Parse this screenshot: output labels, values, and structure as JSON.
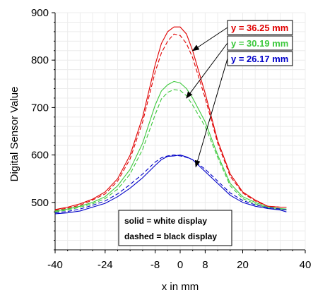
{
  "chart_data": {
    "type": "line",
    "title": "",
    "xlabel": "x in mm",
    "ylabel": "Digital Sensor Value",
    "xlim": [
      -40,
      40
    ],
    "ylim": [
      400,
      900
    ],
    "x_ticks": [
      -40,
      -24,
      -8,
      0,
      8,
      20,
      40
    ],
    "y_ticks": [
      500,
      600,
      700,
      800,
      900
    ],
    "grid": true,
    "series": [
      {
        "name": "y = 36.25 mm",
        "display": "white",
        "style": "solid",
        "color": "#e00000",
        "x": [
          -40,
          -36,
          -32,
          -28,
          -24,
          -20,
          -16,
          -12,
          -8,
          -6,
          -4,
          -2,
          0,
          2,
          4,
          8,
          12,
          16,
          20,
          24,
          28,
          32,
          34
        ],
        "y": [
          485,
          490,
          497,
          507,
          522,
          550,
          600,
          680,
          790,
          835,
          860,
          870,
          870,
          855,
          820,
          730,
          630,
          560,
          522,
          505,
          492,
          490,
          490
        ]
      },
      {
        "name": "y = 36.25 mm",
        "display": "black",
        "style": "dashed",
        "color": "#e00000",
        "x": [
          -40,
          -36,
          -32,
          -28,
          -24,
          -20,
          -16,
          -12,
          -8,
          -6,
          -4,
          -2,
          0,
          2,
          4,
          8,
          12,
          16,
          20,
          24,
          28,
          32,
          34
        ],
        "y": [
          483,
          488,
          494,
          505,
          518,
          545,
          592,
          670,
          775,
          815,
          840,
          855,
          852,
          835,
          805,
          720,
          625,
          555,
          520,
          503,
          492,
          490,
          490
        ]
      },
      {
        "name": "y = 30.19 mm",
        "display": "white",
        "style": "solid",
        "color": "#3cc83c",
        "x": [
          -40,
          -36,
          -32,
          -28,
          -24,
          -20,
          -16,
          -12,
          -8,
          -6,
          -4,
          -2,
          0,
          2,
          4,
          8,
          12,
          16,
          20,
          24,
          28,
          32,
          34
        ],
        "y": [
          482,
          486,
          492,
          500,
          512,
          535,
          570,
          625,
          705,
          735,
          748,
          755,
          752,
          740,
          720,
          670,
          600,
          540,
          512,
          500,
          490,
          487,
          486
        ]
      },
      {
        "name": "y = 30.19 mm",
        "display": "black",
        "style": "dashed",
        "color": "#3cc83c",
        "x": [
          -40,
          -36,
          -32,
          -28,
          -24,
          -20,
          -16,
          -12,
          -8,
          -6,
          -4,
          -2,
          0,
          2,
          4,
          8,
          12,
          16,
          20,
          24,
          28,
          32,
          34
        ],
        "y": [
          480,
          484,
          490,
          497,
          508,
          528,
          560,
          612,
          685,
          718,
          732,
          738,
          736,
          725,
          705,
          660,
          595,
          535,
          508,
          497,
          488,
          485,
          485
        ]
      },
      {
        "name": "y = 26.17 mm",
        "display": "white",
        "style": "solid",
        "color": "#0000c8",
        "x": [
          -40,
          -36,
          -32,
          -28,
          -24,
          -20,
          -16,
          -12,
          -8,
          -6,
          -4,
          -2,
          0,
          2,
          4,
          8,
          12,
          16,
          20,
          24,
          28,
          32,
          34
        ],
        "y": [
          476,
          478,
          482,
          490,
          498,
          512,
          530,
          552,
          578,
          590,
          597,
          598,
          600,
          596,
          590,
          565,
          540,
          515,
          500,
          492,
          487,
          484,
          480
        ]
      },
      {
        "name": "y = 26.17 mm",
        "display": "black",
        "style": "dashed",
        "color": "#0000c8",
        "x": [
          -40,
          -36,
          -32,
          -28,
          -24,
          -20,
          -16,
          -12,
          -8,
          -6,
          -4,
          -2,
          0,
          2,
          4,
          8,
          12,
          16,
          20,
          24,
          28,
          32,
          34
        ],
        "y": [
          478,
          481,
          486,
          494,
          503,
          518,
          538,
          560,
          585,
          594,
          598,
          600,
          598,
          595,
          590,
          570,
          545,
          520,
          504,
          495,
          489,
          486,
          484
        ]
      }
    ],
    "annotations": [
      {
        "text": "y = 36.25 mm",
        "color": "#e00000",
        "arrow_to": [
          4,
          820
        ]
      },
      {
        "text": "y = 30.19 mm",
        "color": "#3cc83c",
        "arrow_to": [
          2,
          720
        ]
      },
      {
        "text": "y = 26.17 mm",
        "color": "#0000c8",
        "arrow_to": [
          5,
          575
        ]
      }
    ],
    "notes": [
      "solid = white display",
      "dashed = black display"
    ]
  }
}
